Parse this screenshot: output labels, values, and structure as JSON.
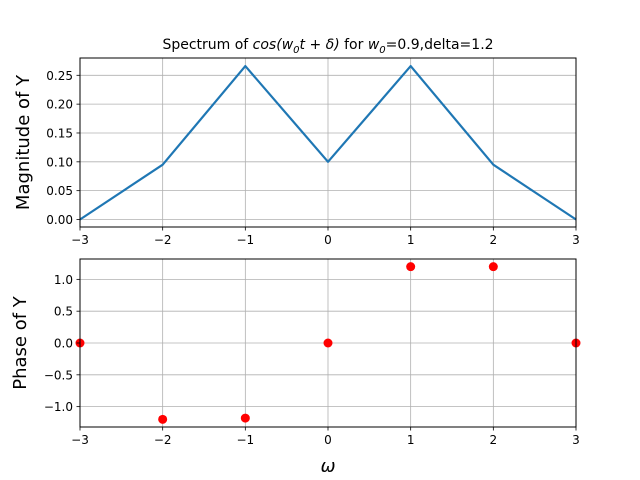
{
  "chart_data": [
    {
      "type": "line",
      "title_parts": [
        "Spectrum of ",
        "cos(w",
        "0",
        "t + δ)",
        " for ",
        "w",
        "0",
        "=0.9,delta=1.2"
      ],
      "ylabel": "Magnitude of Y",
      "xlabel": "",
      "x": [
        -3,
        -2,
        -1,
        0,
        1,
        2,
        3
      ],
      "series": [
        {
          "values": [
            0.0,
            0.095,
            0.266,
            0.1,
            0.266,
            0.095,
            0.0
          ],
          "color": "#1f77b4"
        }
      ],
      "xlim": [
        -3,
        3
      ],
      "ylim": [
        -0.013,
        0.28
      ],
      "xticks": [
        -3,
        -2,
        -1,
        0,
        1,
        2,
        3
      ],
      "xtick_labels": [
        "−3",
        "−2",
        "−1",
        "0",
        "1",
        "2",
        "3"
      ],
      "yticks": [
        0.0,
        0.05,
        0.1,
        0.15,
        0.2,
        0.25
      ],
      "ytick_labels": [
        "0.00",
        "0.05",
        "0.10",
        "0.15",
        "0.20",
        "0.25"
      ],
      "grid": true
    },
    {
      "type": "scatter",
      "ylabel": "Phase of Y",
      "xlabel": "ω",
      "x": [
        -3,
        -2,
        -1,
        0,
        1,
        2,
        3
      ],
      "series": [
        {
          "values": [
            0.0,
            -1.2,
            -1.18,
            0.0,
            1.2,
            1.2,
            0.0
          ],
          "color": "#ff0000"
        }
      ],
      "xlim": [
        -3,
        3
      ],
      "ylim": [
        -1.32,
        1.32
      ],
      "xticks": [
        -3,
        -2,
        -1,
        0,
        1,
        2,
        3
      ],
      "xtick_labels": [
        "−3",
        "−2",
        "−1",
        "0",
        "1",
        "2",
        "3"
      ],
      "yticks": [
        -1.0,
        -0.5,
        0.0,
        0.5,
        1.0
      ],
      "ytick_labels": [
        "−1.0",
        "−0.5",
        "0.0",
        "0.5",
        "1.0"
      ],
      "grid": true
    }
  ]
}
